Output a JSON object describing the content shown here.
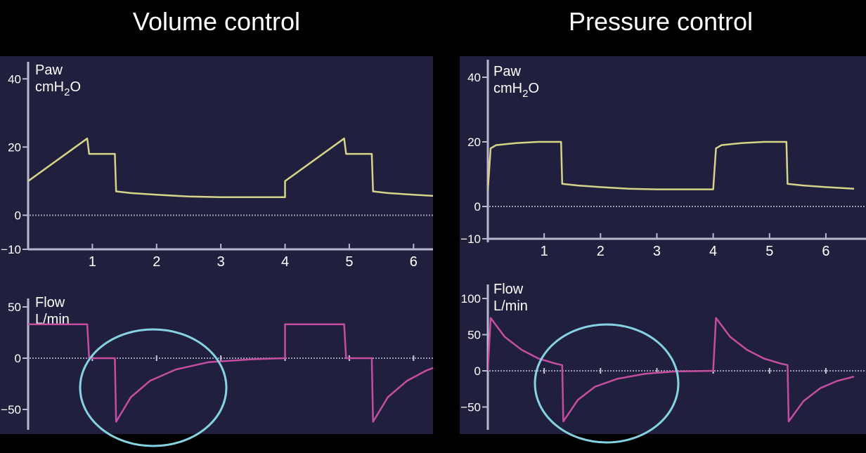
{
  "titles": {
    "left": "Volume control",
    "right": "Pressure control"
  },
  "colors": {
    "background": "#000000",
    "panel": "#20203e",
    "pressure_line": "#d7d48a",
    "flow_line": "#c64ea0",
    "circle": "#86d2e2",
    "axis": "#b8b8cc"
  },
  "chart_data": [
    {
      "type": "line",
      "panel": "Volume control - pressure",
      "label_line1": "Paw",
      "label_line2": "cmH",
      "label_sub": "2",
      "label_tail": "O",
      "yticks": [
        40,
        20,
        0,
        "−10"
      ],
      "xticks": [
        1,
        2,
        3,
        4,
        5,
        6
      ],
      "ylim": [
        -10,
        45
      ],
      "xlim": [
        0,
        6.5
      ],
      "x": [
        0,
        0.92,
        0.95,
        1.35,
        1.37,
        1.6,
        2.0,
        2.5,
        3.0,
        4.0,
        4.0,
        4.92,
        4.95,
        5.35,
        5.37,
        5.6,
        6.0,
        6.5
      ],
      "y": [
        10,
        22.5,
        18,
        18,
        7,
        6.5,
        6,
        5.5,
        5.3,
        5.3,
        10,
        22.5,
        18,
        18,
        7,
        6.5,
        6,
        5.5
      ]
    },
    {
      "type": "line",
      "panel": "Volume control - flow",
      "label_line1": "Flow",
      "label_line2": "L/min",
      "yticks": [
        50,
        0,
        "−50"
      ],
      "xlim": [
        0,
        6.5
      ],
      "ylim": [
        -75,
        60
      ],
      "x": [
        0,
        0.92,
        0.95,
        1.35,
        1.37,
        1.6,
        1.9,
        2.3,
        2.8,
        3.5,
        4.0,
        4.0,
        4.92,
        4.95,
        5.35,
        5.37,
        5.6,
        5.9,
        6.2,
        6.5
      ],
      "y": [
        33,
        33,
        0,
        0,
        -62,
        -38,
        -22,
        -11,
        -4,
        -1,
        0,
        33,
        33,
        0,
        0,
        -62,
        -38,
        -22,
        -12,
        -5
      ],
      "annotation": "circle around expiratory flow"
    },
    {
      "type": "line",
      "panel": "Pressure control - pressure",
      "label_line1": "Paw",
      "label_line2": "cmH",
      "label_sub": "2",
      "label_tail": "O",
      "yticks": [
        40,
        20,
        0,
        "−10"
      ],
      "xticks": [
        1,
        2,
        3,
        4,
        5,
        6
      ],
      "ylim": [
        -10,
        45
      ],
      "xlim": [
        0,
        6.5
      ],
      "x": [
        0,
        0.05,
        0.15,
        0.5,
        0.9,
        1.3,
        1.32,
        1.6,
        2.0,
        2.5,
        3.0,
        4.0,
        4.05,
        4.15,
        4.5,
        4.9,
        5.3,
        5.32,
        5.6,
        6.0,
        6.5
      ],
      "y": [
        5,
        18,
        19,
        19.6,
        20,
        20,
        7,
        6.5,
        6,
        5.5,
        5.3,
        5.3,
        18,
        19,
        19.6,
        20,
        20,
        7,
        6.5,
        6,
        5.5
      ]
    },
    {
      "type": "line",
      "panel": "Pressure control - flow",
      "label_line1": "Flow",
      "label_line2": "L/min",
      "yticks": [
        100,
        50,
        0,
        "−50"
      ],
      "xlim": [
        0,
        6.5
      ],
      "ylim": [
        -75,
        110
      ],
      "x": [
        0,
        0.05,
        0.3,
        0.6,
        0.9,
        1.2,
        1.32,
        1.34,
        1.6,
        1.9,
        2.3,
        2.8,
        3.3,
        4.0,
        4.05,
        4.3,
        4.6,
        4.9,
        5.2,
        5.32,
        5.34,
        5.6,
        5.9,
        6.2,
        6.5
      ],
      "y": [
        0,
        73,
        47,
        29,
        17,
        10,
        8,
        -70,
        -40,
        -22,
        -11,
        -4,
        -1,
        0,
        73,
        47,
        29,
        17,
        10,
        8,
        -70,
        -42,
        -24,
        -14,
        -8
      ],
      "annotation": "circle around expiratory flow"
    }
  ]
}
